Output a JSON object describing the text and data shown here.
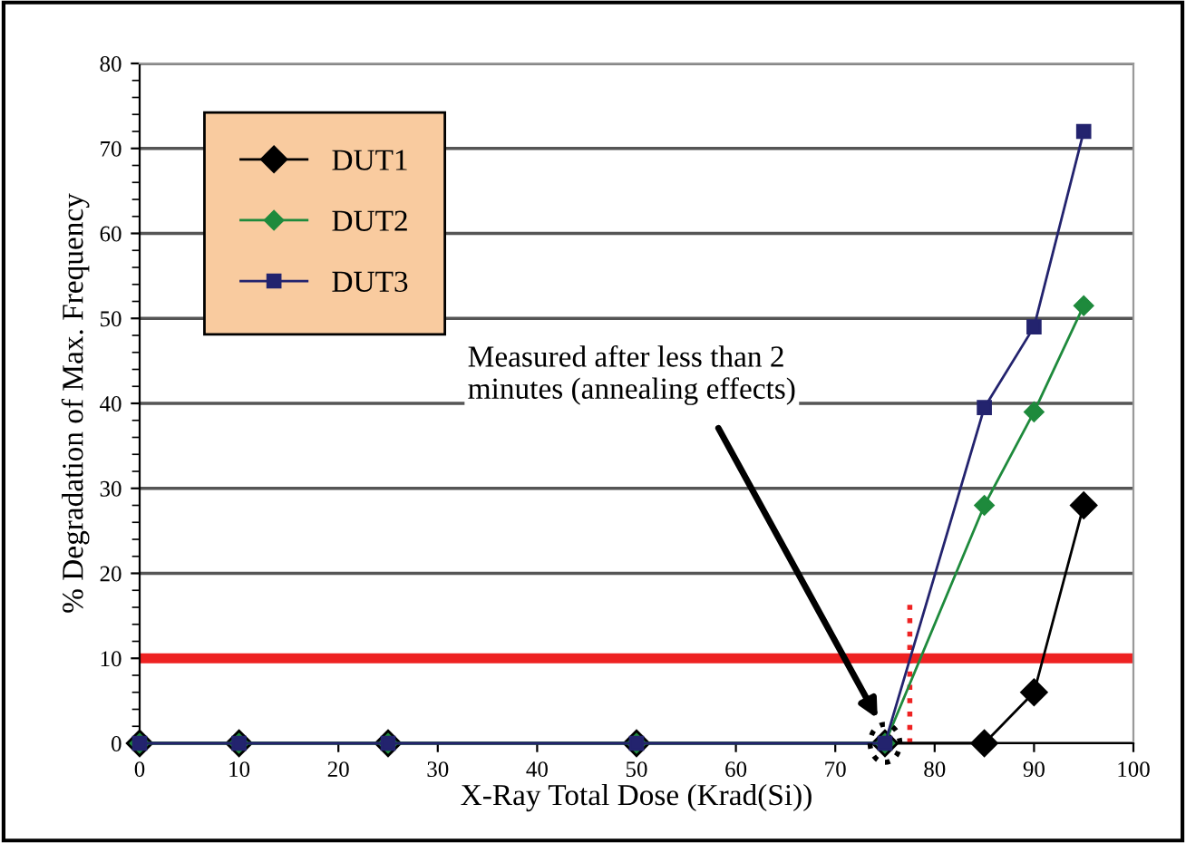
{
  "chart_data": {
    "type": "line",
    "xlabel": "X-Ray Total Dose (Krad(Si))",
    "ylabel": "% Degradation of Max. Frequency",
    "x": [
      0,
      10,
      25,
      50,
      75,
      85,
      90,
      95
    ],
    "series": [
      {
        "name": "DUT1",
        "color": "#000000",
        "marker": "diamond",
        "values": [
          0,
          0,
          0,
          0,
          0,
          0,
          6,
          28
        ]
      },
      {
        "name": "DUT2",
        "color": "#1e8a3c",
        "marker": "diamond",
        "values": [
          0,
          0,
          0,
          0,
          0,
          28,
          39,
          51.5
        ]
      },
      {
        "name": "DUT3",
        "color": "#23236e",
        "marker": "square",
        "values": [
          0,
          0,
          0,
          0,
          0,
          39.5,
          49,
          72
        ]
      }
    ],
    "xlim": [
      0,
      100
    ],
    "xticks": [
      0,
      10,
      20,
      30,
      40,
      50,
      60,
      70,
      80,
      90,
      100
    ],
    "ylim": [
      0,
      80
    ],
    "yticks": [
      0,
      10,
      20,
      30,
      40,
      50,
      60,
      70,
      80
    ],
    "grid": "y",
    "legend": "top left",
    "ref_lines": [
      {
        "axis": "y",
        "value": 10,
        "color": "#ee2222",
        "line_style": "solid"
      },
      {
        "axis": "x",
        "value": 77.5,
        "color": "#ee2222",
        "line_style": "dotted"
      }
    ],
    "annotations": [
      "Measured after less than 2\nminutes (annealing effects)"
    ]
  }
}
